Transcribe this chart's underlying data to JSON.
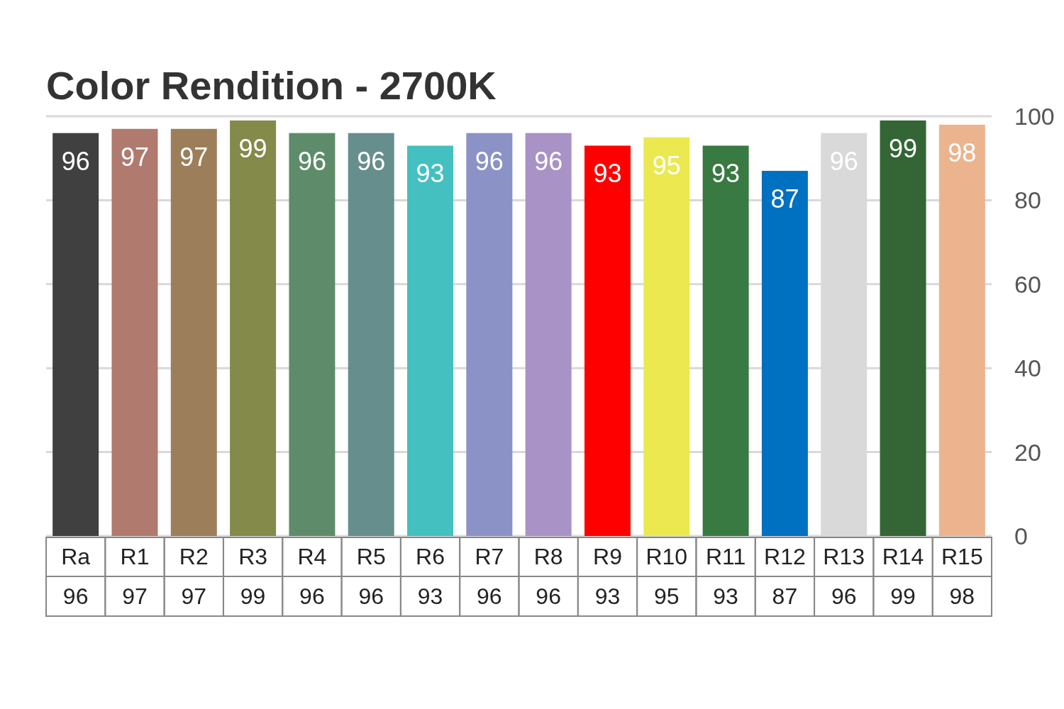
{
  "chart_data": {
    "type": "bar",
    "title": "Color Rendition - 2700K",
    "categories": [
      "Ra",
      "R1",
      "R2",
      "R3",
      "R4",
      "R5",
      "R6",
      "R7",
      "R8",
      "R9",
      "R10",
      "R11",
      "R12",
      "R13",
      "R14",
      "R15"
    ],
    "values": [
      96,
      97,
      97,
      99,
      96,
      96,
      93,
      96,
      96,
      93,
      95,
      93,
      87,
      96,
      99,
      98
    ],
    "colors": [
      "#404040",
      "#b07a6e",
      "#9c7f5a",
      "#838a4a",
      "#5e8c6a",
      "#668e8c",
      "#43c0bf",
      "#8b92c6",
      "#a892c6",
      "#ff0000",
      "#ece850",
      "#387a42",
      "#0070c0",
      "#d9d9d9",
      "#336535",
      "#ebb48e"
    ],
    "annotations": [
      "96",
      "97",
      "97",
      "99",
      "96",
      "96",
      "93",
      "96",
      "96",
      "93",
      "95",
      "93",
      "87",
      "96",
      "99",
      "98"
    ],
    "ylim": [
      0,
      100
    ],
    "yticks": [
      0,
      20,
      40,
      60,
      80,
      100
    ],
    "grid": true,
    "data_labels": true
  }
}
